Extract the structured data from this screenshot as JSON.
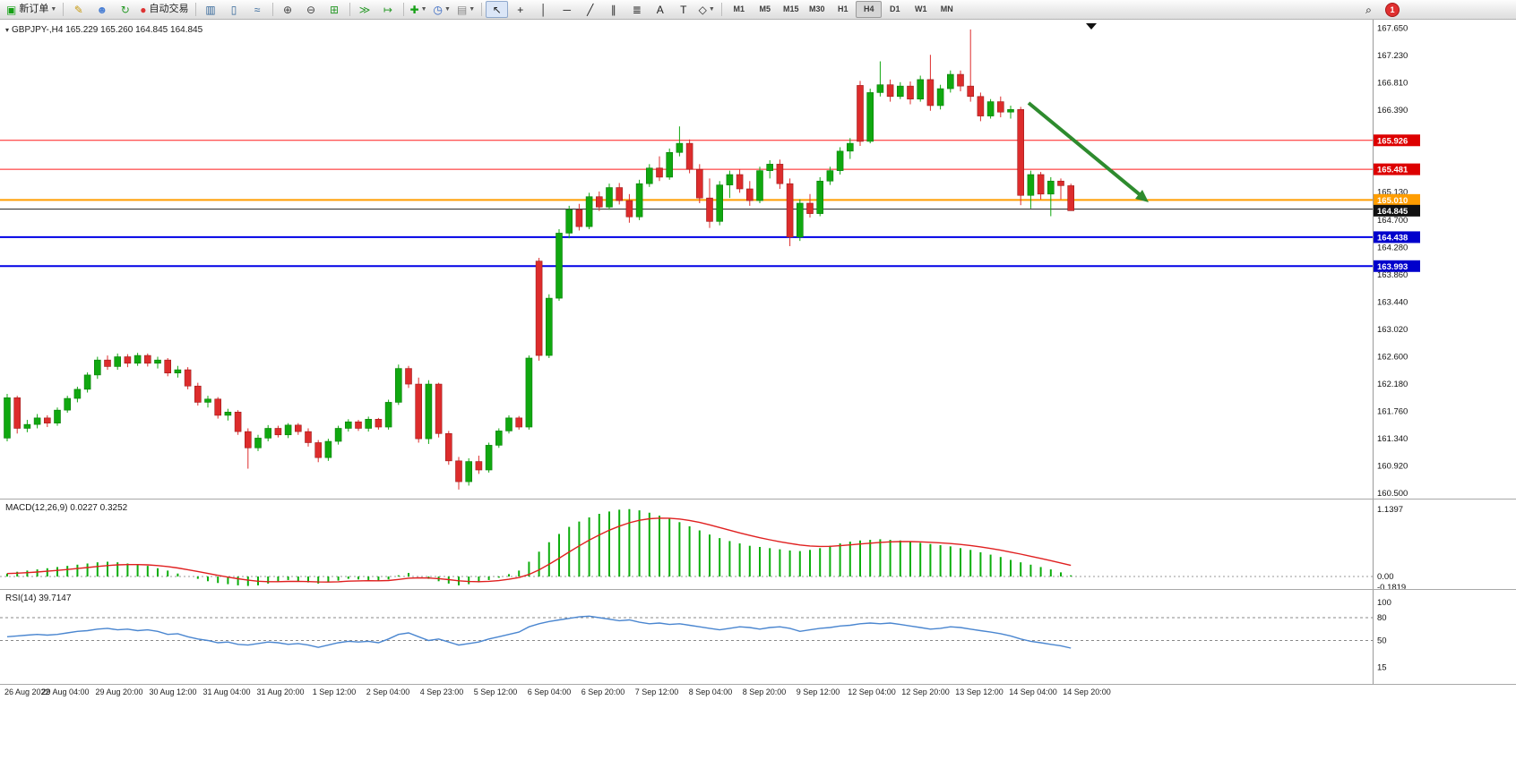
{
  "toolbar": {
    "new_order_label": "新订单",
    "auto_trading_label": "自动交易",
    "search_glyph": "⌕",
    "notification_count": "1",
    "timeframes": [
      "M1",
      "M5",
      "M15",
      "M30",
      "H1",
      "H4",
      "D1",
      "W1",
      "MN"
    ],
    "active_timeframe": "H4",
    "items": [
      {
        "name": "new-order",
        "icon": "new-order-icon",
        "glyph": "▣",
        "color": "#15a015",
        "label": "新订单",
        "caret": true
      },
      {
        "sep": true
      },
      {
        "name": "chart-style",
        "icon": "pencil-icon",
        "glyph": "✎",
        "color": "#c79a12"
      },
      {
        "name": "profiles",
        "icon": "profiles-icon",
        "glyph": "☻",
        "color": "#4a7fd4"
      },
      {
        "name": "refresh",
        "icon": "refresh-icon",
        "glyph": "↻",
        "color": "#2a9a2a"
      },
      {
        "name": "auto-trading",
        "icon": "auto-trading-icon",
        "glyph": "●",
        "color": "#dd3333",
        "label": "自动交易"
      },
      {
        "sep": true
      },
      {
        "name": "bars-chart",
        "icon": "bars-chart-icon",
        "glyph": "▥",
        "color": "#336699"
      },
      {
        "name": "candles-chart",
        "icon": "candles-chart-icon",
        "glyph": "▯",
        "color": "#336699"
      },
      {
        "name": "line-chart",
        "icon": "line-chart-icon",
        "glyph": "≈",
        "color": "#336699"
      },
      {
        "sep": true
      },
      {
        "name": "zoom-in",
        "icon": "zoom-in-icon",
        "glyph": "⊕",
        "color": "#444444"
      },
      {
        "name": "zoom-out",
        "icon": "zoom-out-icon",
        "glyph": "⊖",
        "color": "#444444"
      },
      {
        "name": "tile-windows",
        "icon": "tile-windows-icon",
        "glyph": "⊞",
        "color": "#2a9a2a"
      },
      {
        "sep": true
      },
      {
        "name": "auto-scroll",
        "icon": "auto-scroll-icon",
        "glyph": "≫",
        "color": "#2a9a2a"
      },
      {
        "name": "chart-shift",
        "icon": "chart-shift-icon",
        "glyph": "↦",
        "color": "#2a9a2a"
      },
      {
        "sep": true
      },
      {
        "name": "indicators",
        "icon": "indicators-plus-icon",
        "glyph": "✚",
        "color": "#15a015",
        "caret": true
      },
      {
        "name": "periods",
        "icon": "clock-icon",
        "glyph": "◷",
        "color": "#2b5fc0",
        "caret": true
      },
      {
        "name": "templates",
        "icon": "template-icon",
        "glyph": "▤",
        "color": "#888888",
        "caret": true
      },
      {
        "sep": true
      },
      {
        "name": "cursor-tool",
        "icon": "cursor-icon",
        "glyph": "↖",
        "color": "#222222",
        "active": true
      },
      {
        "name": "crosshair-tool",
        "icon": "crosshair-icon",
        "glyph": "+",
        "color": "#222222"
      },
      {
        "name": "vline-tool",
        "icon": "vertical-line-icon",
        "glyph": "│",
        "color": "#222222"
      },
      {
        "name": "hline-tool",
        "icon": "horizontal-line-icon",
        "glyph": "─",
        "color": "#222222"
      },
      {
        "name": "trendline-tool",
        "icon": "trendline-icon",
        "glyph": "╱",
        "color": "#222222"
      },
      {
        "name": "channel-tool",
        "icon": "channel-icon",
        "glyph": "∥",
        "color": "#222222"
      },
      {
        "name": "fibonacci-tool",
        "icon": "fibonacci-icon",
        "glyph": "≣",
        "color": "#222222"
      },
      {
        "name": "text-tool",
        "icon": "text-icon",
        "glyph": "A",
        "color": "#222222"
      },
      {
        "name": "label-tool",
        "icon": "label-icon",
        "glyph": "T",
        "color": "#222222"
      },
      {
        "name": "arrows-tool",
        "icon": "shapes-icon",
        "glyph": "◇",
        "color": "#222222",
        "caret": true
      },
      {
        "sep": true
      }
    ]
  },
  "chart": {
    "title": "GBPJPY-,H4 165.229 165.260 164.845 164.845",
    "symbol": "GBPJPY-",
    "period": "H4"
  },
  "price_axis": {
    "ticks": [
      "167.650",
      "167.230",
      "166.810",
      "166.390",
      "165.130",
      "164.700",
      "164.280",
      "163.860",
      "163.440",
      "163.020",
      "162.600",
      "162.180",
      "161.760",
      "161.340",
      "160.920",
      "160.500"
    ]
  },
  "hlines": [
    {
      "price": 165.926,
      "label": "165.926",
      "line": "#ff1a1a",
      "badge": "#dd0000",
      "width": 1
    },
    {
      "price": 165.481,
      "label": "165.481",
      "line": "#ff1a1a",
      "badge": "#dd0000",
      "width": 1
    },
    {
      "price": 165.01,
      "label": "165.010",
      "line": "#ff9d00",
      "badge": "#ff9d00",
      "width": 2
    },
    {
      "price": 164.868,
      "label": null,
      "line": "#1d1d1d",
      "badge": null,
      "width": 1
    },
    {
      "price": 164.438,
      "label": "164.438",
      "line": "#0000e6",
      "badge": "#0000cc",
      "width": 2
    },
    {
      "price": 163.993,
      "label": "163.993",
      "line": "#0000e6",
      "badge": "#0000cc",
      "width": 2
    }
  ],
  "current_price_badge": {
    "label": "164.845",
    "price": 164.845,
    "badge": "#111111"
  },
  "macd": {
    "label": "MACD(12,26,9) 0.0227 0.3252",
    "axis": [
      "1.1397",
      "0.00",
      "-0.1819"
    ],
    "hist_color": "#0cae0c",
    "signal_color": "#e02020"
  },
  "rsi": {
    "label": "RSI(14) 39.7147",
    "levels": [
      "100",
      "80",
      "50",
      "15"
    ],
    "dashed_levels": [
      80,
      50
    ],
    "line_color": "#4a86d0"
  },
  "annotation_arrow": {
    "color": "#2e8b2e",
    "from": [
      1148,
      93
    ],
    "to": [
      1282,
      204
    ]
  },
  "time_labels": [
    "26 Aug 2022",
    "29 Aug 04:00",
    "29 Aug 20:00",
    "30 Aug 12:00",
    "31 Aug 04:00",
    "31 Aug 20:00",
    "1 Sep 12:00",
    "2 Sep 04:00",
    "4 Sep 23:00",
    "5 Sep 12:00",
    "6 Sep 04:00",
    "6 Sep 20:00",
    "7 Sep 12:00",
    "8 Sep 04:00",
    "8 Sep 20:00",
    "9 Sep 12:00",
    "12 Sep 04:00",
    "12 Sep 20:00",
    "13 Sep 12:00",
    "14 Sep 04:00",
    "14 Sep 20:00"
  ],
  "chart_data": {
    "type": "candlestick",
    "symbol": "GBPJPY-",
    "timeframe": "H4",
    "title": "GBPJPY-,H4",
    "ohlc_current": {
      "open": 165.229,
      "high": 165.26,
      "low": 164.845,
      "close": 164.845
    },
    "price_range": [
      160.42,
      167.78
    ],
    "up_color": "#10a810",
    "down_color": "#dd2c2c",
    "candles": [
      [
        161.35,
        162.03,
        161.3,
        161.97
      ],
      [
        161.97,
        162.0,
        161.42,
        161.5
      ],
      [
        161.5,
        161.63,
        161.44,
        161.56
      ],
      [
        161.56,
        161.72,
        161.5,
        161.66
      ],
      [
        161.66,
        161.7,
        161.52,
        161.58
      ],
      [
        161.58,
        161.82,
        161.54,
        161.78
      ],
      [
        161.78,
        162.0,
        161.74,
        161.96
      ],
      [
        161.96,
        162.14,
        161.9,
        162.1
      ],
      [
        162.1,
        162.36,
        162.05,
        162.32
      ],
      [
        162.32,
        162.6,
        162.26,
        162.55
      ],
      [
        162.55,
        162.62,
        162.4,
        162.45
      ],
      [
        162.45,
        162.65,
        162.4,
        162.6
      ],
      [
        162.6,
        162.64,
        162.44,
        162.5
      ],
      [
        162.5,
        162.66,
        162.46,
        162.62
      ],
      [
        162.62,
        162.65,
        162.45,
        162.5
      ],
      [
        162.5,
        162.6,
        162.42,
        162.55
      ],
      [
        162.55,
        162.58,
        162.3,
        162.35
      ],
      [
        162.35,
        162.46,
        162.28,
        162.4
      ],
      [
        162.4,
        162.44,
        162.1,
        162.15
      ],
      [
        162.15,
        162.2,
        161.85,
        161.9
      ],
      [
        161.9,
        162.0,
        161.82,
        161.95
      ],
      [
        161.95,
        161.98,
        161.65,
        161.7
      ],
      [
        161.7,
        161.8,
        161.62,
        161.75
      ],
      [
        161.75,
        161.78,
        161.4,
        161.45
      ],
      [
        161.45,
        161.5,
        160.88,
        161.2
      ],
      [
        161.2,
        161.4,
        161.15,
        161.35
      ],
      [
        161.35,
        161.55,
        161.3,
        161.5
      ],
      [
        161.5,
        161.54,
        161.36,
        161.4
      ],
      [
        161.4,
        161.58,
        161.35,
        161.55
      ],
      [
        161.55,
        161.58,
        161.4,
        161.45
      ],
      [
        161.45,
        161.5,
        161.22,
        161.28
      ],
      [
        161.28,
        161.32,
        160.98,
        161.05
      ],
      [
        161.05,
        161.34,
        161.0,
        161.3
      ],
      [
        161.3,
        161.54,
        161.25,
        161.5
      ],
      [
        161.5,
        161.64,
        161.45,
        161.6
      ],
      [
        161.6,
        161.63,
        161.46,
        161.5
      ],
      [
        161.5,
        161.68,
        161.45,
        161.64
      ],
      [
        161.64,
        161.66,
        161.48,
        161.52
      ],
      [
        161.52,
        161.94,
        161.48,
        161.9
      ],
      [
        161.9,
        162.48,
        161.86,
        162.42
      ],
      [
        162.42,
        162.46,
        162.12,
        162.18
      ],
      [
        162.18,
        162.28,
        161.28,
        161.34
      ],
      [
        161.34,
        162.24,
        161.26,
        162.18
      ],
      [
        162.18,
        162.2,
        161.36,
        161.42
      ],
      [
        161.42,
        161.46,
        160.94,
        161.0
      ],
      [
        161.0,
        161.06,
        160.56,
        160.68
      ],
      [
        160.68,
        161.04,
        160.62,
        160.99
      ],
      [
        160.99,
        161.08,
        160.8,
        160.86
      ],
      [
        160.86,
        161.28,
        160.82,
        161.24
      ],
      [
        161.24,
        161.5,
        161.2,
        161.46
      ],
      [
        161.46,
        161.7,
        161.42,
        161.66
      ],
      [
        161.66,
        161.69,
        161.48,
        161.52
      ],
      [
        161.52,
        162.62,
        161.48,
        162.58
      ],
      [
        164.07,
        164.12,
        162.54,
        162.62
      ],
      [
        162.62,
        163.56,
        162.58,
        163.5
      ],
      [
        163.5,
        164.56,
        163.46,
        164.5
      ],
      [
        164.5,
        164.92,
        164.42,
        164.86
      ],
      [
        164.86,
        164.95,
        164.54,
        164.6
      ],
      [
        164.6,
        165.12,
        164.56,
        165.06
      ],
      [
        165.06,
        165.14,
        164.84,
        164.9
      ],
      [
        164.9,
        165.26,
        164.86,
        165.2
      ],
      [
        165.2,
        165.27,
        164.94,
        165.0
      ],
      [
        165.0,
        165.1,
        164.66,
        164.75
      ],
      [
        164.75,
        165.32,
        164.7,
        165.26
      ],
      [
        165.26,
        165.56,
        165.21,
        165.5
      ],
      [
        165.5,
        165.68,
        165.3,
        165.36
      ],
      [
        165.36,
        165.8,
        165.32,
        165.74
      ],
      [
        165.74,
        166.14,
        165.68,
        165.88
      ],
      [
        165.88,
        165.94,
        165.42,
        165.48
      ],
      [
        165.48,
        165.56,
        164.96,
        165.04
      ],
      [
        165.04,
        165.34,
        164.58,
        164.68
      ],
      [
        164.68,
        165.3,
        164.62,
        165.24
      ],
      [
        165.24,
        165.46,
        165.04,
        165.4
      ],
      [
        165.4,
        165.48,
        165.12,
        165.18
      ],
      [
        165.18,
        165.3,
        164.92,
        165.0
      ],
      [
        165.0,
        165.52,
        164.96,
        165.46
      ],
      [
        165.46,
        165.62,
        165.34,
        165.56
      ],
      [
        165.56,
        165.63,
        165.18,
        165.26
      ],
      [
        165.26,
        165.34,
        164.3,
        164.44
      ],
      [
        164.44,
        165.02,
        164.38,
        164.96
      ],
      [
        164.96,
        165.1,
        164.74,
        164.8
      ],
      [
        164.8,
        165.36,
        164.76,
        165.3
      ],
      [
        165.3,
        165.52,
        165.24,
        165.46
      ],
      [
        165.46,
        165.82,
        165.4,
        165.76
      ],
      [
        165.76,
        165.96,
        165.64,
        165.88
      ],
      [
        166.77,
        166.84,
        165.84,
        165.91
      ],
      [
        165.91,
        166.72,
        165.88,
        166.66
      ],
      [
        166.66,
        167.14,
        166.6,
        166.78
      ],
      [
        166.78,
        166.86,
        166.52,
        166.6
      ],
      [
        166.6,
        166.82,
        166.56,
        166.76
      ],
      [
        166.76,
        166.83,
        166.48,
        166.56
      ],
      [
        166.56,
        166.92,
        166.52,
        166.86
      ],
      [
        166.86,
        167.24,
        166.38,
        166.46
      ],
      [
        166.46,
        166.78,
        166.4,
        166.72
      ],
      [
        166.72,
        167.0,
        166.66,
        166.94
      ],
      [
        166.94,
        167.0,
        166.68,
        166.76
      ],
      [
        166.76,
        167.63,
        166.52,
        166.6
      ],
      [
        166.6,
        166.66,
        166.22,
        166.3
      ],
      [
        166.3,
        166.56,
        166.26,
        166.52
      ],
      [
        166.52,
        166.6,
        166.28,
        166.36
      ],
      [
        166.36,
        166.46,
        166.26,
        166.4
      ],
      [
        166.4,
        166.44,
        164.93,
        165.08
      ],
      [
        165.08,
        165.46,
        164.88,
        165.4
      ],
      [
        165.4,
        165.44,
        165.02,
        165.1
      ],
      [
        165.1,
        165.36,
        164.76,
        165.3
      ],
      [
        165.3,
        165.34,
        165.02,
        165.23
      ],
      [
        165.229,
        165.26,
        164.845,
        164.845
      ]
    ],
    "macd_hist": [
      0.05,
      0.08,
      0.1,
      0.12,
      0.14,
      0.16,
      0.18,
      0.2,
      0.22,
      0.24,
      0.25,
      0.24,
      0.22,
      0.2,
      0.18,
      0.14,
      0.1,
      0.05,
      0.0,
      -0.04,
      -0.08,
      -0.11,
      -0.13,
      -0.15,
      -0.16,
      -0.15,
      -0.12,
      -0.09,
      -0.06,
      -0.08,
      -0.1,
      -0.12,
      -0.1,
      -0.07,
      -0.04,
      -0.05,
      -0.06,
      -0.08,
      -0.05,
      0.02,
      0.06,
      0.0,
      -0.04,
      -0.08,
      -0.12,
      -0.15,
      -0.13,
      -0.1,
      -0.06,
      -0.02,
      0.04,
      0.1,
      0.25,
      0.42,
      0.58,
      0.72,
      0.84,
      0.93,
      1.0,
      1.06,
      1.1,
      1.13,
      1.14,
      1.12,
      1.08,
      1.03,
      0.98,
      0.92,
      0.85,
      0.78,
      0.71,
      0.65,
      0.6,
      0.56,
      0.52,
      0.5,
      0.48,
      0.46,
      0.44,
      0.43,
      0.45,
      0.48,
      0.52,
      0.56,
      0.59,
      0.61,
      0.62,
      0.63,
      0.62,
      0.61,
      0.59,
      0.57,
      0.55,
      0.53,
      0.51,
      0.48,
      0.45,
      0.41,
      0.37,
      0.33,
      0.28,
      0.24,
      0.2,
      0.16,
      0.12,
      0.07,
      0.02
    ],
    "rsi_values": [
      55,
      56,
      57,
      58,
      57,
      58,
      60,
      62,
      63,
      65,
      66,
      64,
      65,
      63,
      64,
      62,
      58,
      59,
      55,
      52,
      50,
      47,
      48,
      45,
      44,
      46,
      48,
      47,
      45,
      46,
      44,
      41,
      44,
      47,
      49,
      48,
      49,
      47,
      52,
      58,
      60,
      55,
      50,
      52,
      48,
      44,
      46,
      48,
      52,
      55,
      58,
      61,
      68,
      72,
      75,
      77,
      79,
      81,
      82,
      80,
      78,
      76,
      77,
      74,
      72,
      73,
      71,
      72,
      70,
      68,
      66,
      64,
      66,
      68,
      67,
      65,
      67,
      68,
      66,
      62,
      64,
      66,
      67,
      69,
      70,
      72,
      73,
      72,
      73,
      71,
      69,
      67,
      65,
      66,
      68,
      67,
      65,
      63,
      61,
      59,
      56,
      52,
      49,
      47,
      45,
      43,
      40
    ]
  }
}
